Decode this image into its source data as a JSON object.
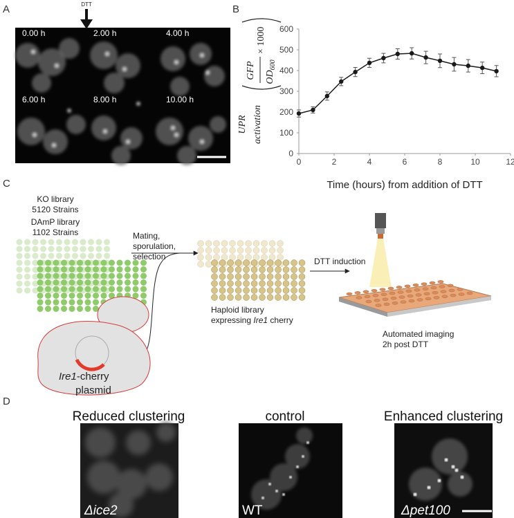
{
  "panel_labels": [
    "A",
    "B",
    "C",
    "D"
  ],
  "panel_a": {
    "arrow_label": "DTT",
    "time_labels": [
      "0.00 h",
      "2.00 h",
      "4.00 h",
      "6.00 h",
      "8.00 h",
      "10.00 h"
    ]
  },
  "chart_data": {
    "type": "line",
    "ylabel": {
      "upr": "UPR",
      "activation": "activation",
      "numerator": "GFP",
      "denominator": "OD",
      "denominator_sub": "600",
      "factor": "× 1000"
    },
    "xlabel": "Time (hours) from addition of DTT",
    "x": [
      0,
      0.8,
      1.6,
      2.4,
      3.2,
      4.0,
      4.8,
      5.6,
      6.4,
      7.2,
      8.0,
      8.8,
      9.6,
      10.4,
      11.2
    ],
    "values": [
      193,
      210,
      277,
      347,
      393,
      437,
      460,
      480,
      483,
      463,
      447,
      430,
      423,
      413,
      397
    ],
    "errors": [
      17,
      15,
      20,
      20,
      22,
      22,
      23,
      25,
      27,
      30,
      33,
      33,
      30,
      28,
      27
    ],
    "color": "#1a1a1a",
    "xlim": [
      0,
      12
    ],
    "xticks": [
      0,
      2,
      4,
      6,
      8,
      10,
      12
    ],
    "ylim": [
      0,
      600
    ],
    "yticks": [
      0,
      100,
      200,
      300,
      400,
      500,
      600
    ],
    "grid": false
  },
  "panel_c": {
    "ko_library": "KO library",
    "ko_strains": "5120 Strains",
    "damp_library": "DAmP library",
    "damp_strains": "1102 Strains",
    "mating": [
      "Mating,",
      "sporulation,",
      "selection"
    ],
    "haploid_line1": "Haploid library",
    "haploid_line2": [
      "expressing ",
      "Ire1",
      " cherry"
    ],
    "dtt_induction": "DTT induction",
    "imaging": [
      "Automated imaging",
      "2h post DTT"
    ],
    "plasmid_line1": [
      "Ire1",
      "-cherry"
    ],
    "plasmid_line2": "plasmid"
  },
  "panel_d": {
    "titles": [
      "Reduced clustering",
      "control",
      "Enhanced clustering"
    ],
    "image_labels": [
      "Δice2",
      "WT",
      "Δpet100"
    ]
  }
}
